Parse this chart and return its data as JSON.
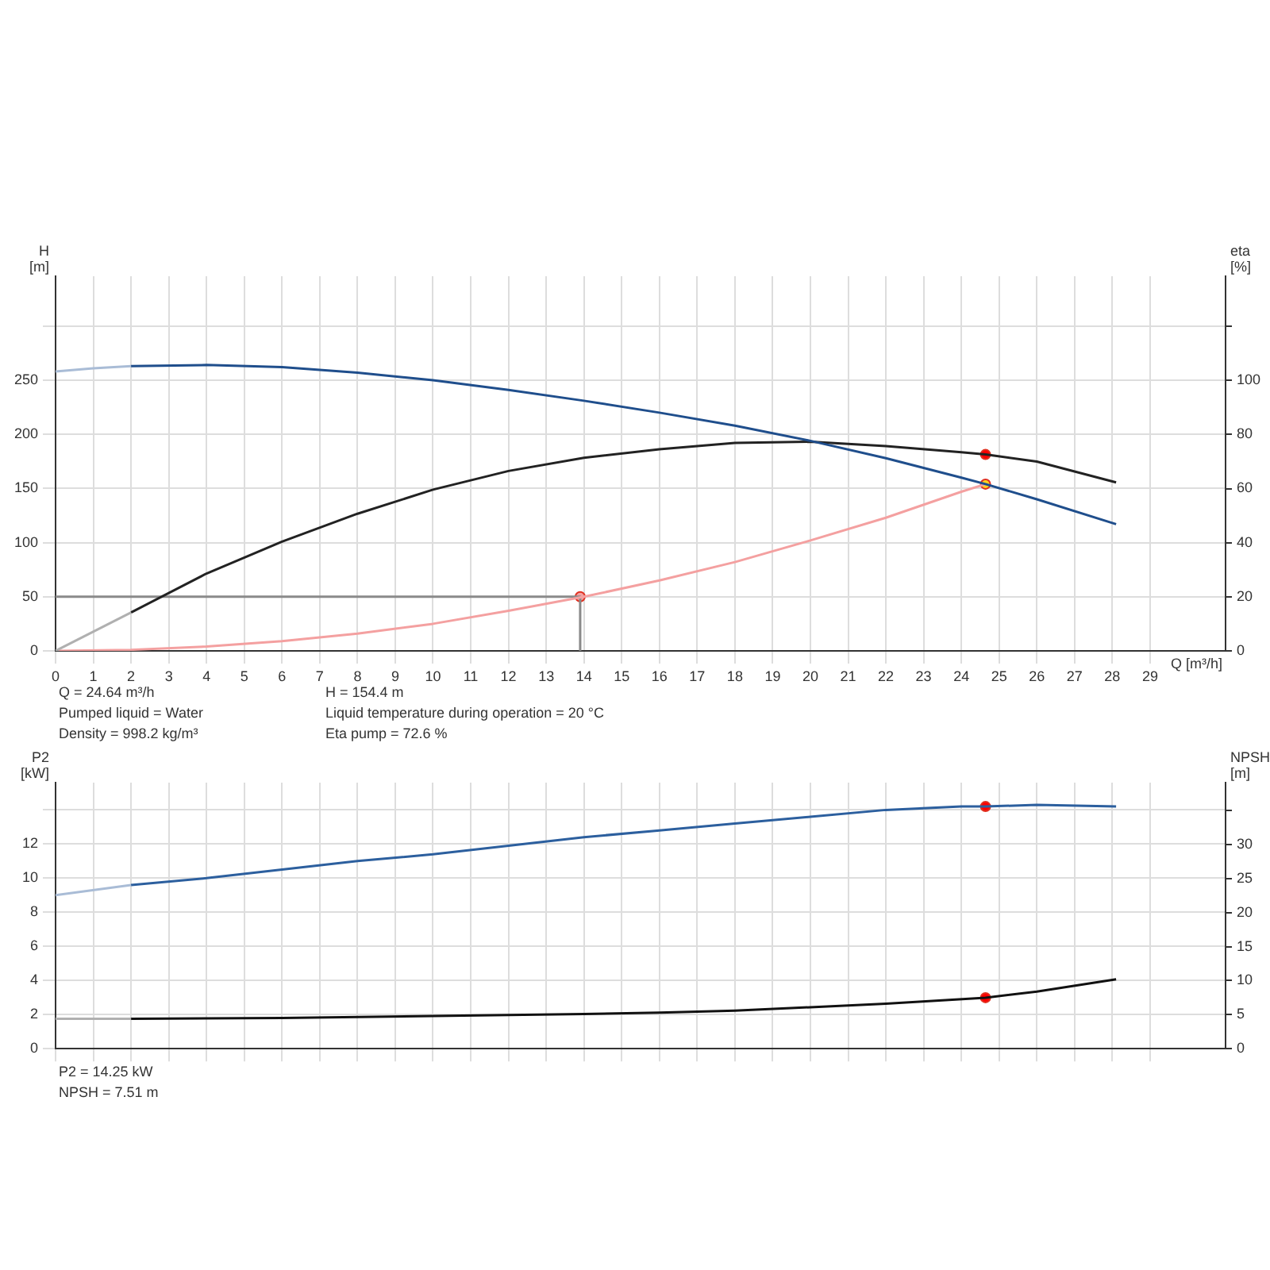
{
  "chart_data": [
    {
      "type": "line",
      "xlabel": "Q [m³/h]",
      "ylabel": "H [m]",
      "y2label": "eta [%]",
      "xlim": [
        0,
        31
      ],
      "xticks": [
        0,
        1,
        2,
        3,
        4,
        5,
        6,
        7,
        8,
        9,
        10,
        11,
        12,
        13,
        14,
        15,
        16,
        17,
        18,
        19,
        20,
        21,
        22,
        23,
        24,
        25,
        26,
        27,
        28,
        29
      ],
      "ylim": [
        0,
        346
      ],
      "yticks": [
        0,
        50,
        100,
        150,
        200,
        250,
        {
          "value": 300,
          "label": null
        }
      ],
      "y2lim": [
        0,
        138.5
      ],
      "y2ticks": [
        0,
        20,
        40,
        60,
        80,
        100,
        {
          "value": 120,
          "label": null
        }
      ],
      "grid": true,
      "legend": false,
      "series": [
        {
          "color": "#a9bcd6",
          "line_style": "solid",
          "marker": "none",
          "x": [
            0,
            1,
            2
          ],
          "values": [
            258,
            261,
            263
          ]
        },
        {
          "color": "#1f4e8c",
          "line_style": "solid",
          "marker": "none",
          "x": [
            2,
            4,
            6,
            8,
            10,
            12,
            14,
            16,
            18,
            20,
            22,
            24,
            24.64,
            26,
            28.1
          ],
          "values": [
            263,
            264,
            262,
            257,
            250,
            241,
            231,
            220,
            208,
            194,
            178,
            160,
            154,
            140,
            117
          ]
        },
        {
          "axis": "y2",
          "color": "#b0b0b0",
          "line_style": "solid",
          "marker": "none",
          "x": [
            0,
            2
          ],
          "values": [
            0,
            14.2
          ]
        },
        {
          "axis": "y2",
          "color": "#222222",
          "line_style": "solid",
          "marker": "none",
          "x": [
            2,
            4,
            6,
            8,
            10,
            12,
            14,
            16,
            18,
            20,
            22,
            24,
            24.64,
            26,
            28.1
          ],
          "values": [
            14.2,
            28.6,
            40.4,
            50.7,
            59.6,
            66.5,
            71.4,
            74.5,
            76.9,
            77.3,
            75.7,
            73.4,
            72.6,
            70.0,
            62.3
          ]
        },
        {
          "color": "#f4a0a0",
          "line_style": "solid",
          "marker": "none",
          "x": [
            0,
            2,
            4,
            6,
            8,
            10,
            12,
            14,
            16,
            18,
            20,
            22,
            24,
            24.64
          ],
          "values": [
            0,
            1,
            4,
            9,
            16,
            25,
            37,
            50,
            65,
            82,
            102,
            123,
            147,
            154
          ]
        },
        {
          "color": "#8a8a8a",
          "line_style": "solid",
          "marker": "none",
          "x": [
            0,
            13.9,
            13.9
          ],
          "values": [
            50,
            50,
            0
          ]
        },
        {
          "type": "scatter",
          "color": "#f4a0a0",
          "marker": "circle",
          "x": [
            13.9
          ],
          "values": [
            50
          ]
        },
        {
          "type": "scatter",
          "axis": "y2",
          "color": "#ff0000",
          "marker": "circle",
          "x": [
            24.64
          ],
          "values": [
            72.6
          ]
        },
        {
          "type": "scatter",
          "color": "#ffd21f",
          "marker": "circle",
          "x": [
            24.64
          ],
          "values": [
            154
          ]
        }
      ],
      "annotations": [
        "Q = 24.64 m³/h",
        "Pumped liquid = Water",
        "Density = 998.2 kg/m³",
        "H = 154.4 m",
        "Liquid temperature during operation = 20 °C",
        "Eta pump = 72.6 %"
      ]
    },
    {
      "type": "line",
      "ylabel": "P2 [kW]",
      "y2label": "NPSH [m]",
      "tick_labels": "y",
      "xlim": [
        0,
        31
      ],
      "xticks": [
        0,
        1,
        2,
        3,
        4,
        5,
        6,
        7,
        8,
        9,
        10,
        11,
        12,
        13,
        14,
        15,
        16,
        17,
        18,
        19,
        20,
        21,
        22,
        23,
        24,
        25,
        26,
        27,
        28,
        29
      ],
      "ylim": [
        0,
        15.6
      ],
      "yticks": [
        0,
        2,
        4,
        6,
        8,
        10,
        12,
        {
          "value": 14,
          "label": null
        }
      ],
      "y2lim": [
        0,
        39.1
      ],
      "y2ticks": [
        0,
        5,
        10,
        15,
        20,
        25,
        30,
        {
          "value": 35,
          "label": null
        }
      ],
      "grid": true,
      "legend": false,
      "series": [
        {
          "color": "#a9bcd6",
          "line_style": "solid",
          "marker": "none",
          "x": [
            0,
            2
          ],
          "values": [
            9.0,
            9.6
          ]
        },
        {
          "color": "#2c5f9e",
          "line_style": "solid",
          "marker": "none",
          "x": [
            2,
            4,
            6,
            8,
            10,
            12,
            14,
            16,
            18,
            20,
            22,
            24,
            24.64,
            26,
            28.1
          ],
          "values": [
            9.6,
            10.0,
            10.5,
            11.0,
            11.4,
            11.9,
            12.4,
            12.8,
            13.2,
            13.6,
            14.0,
            14.2,
            14.2,
            14.3,
            14.2
          ]
        },
        {
          "axis": "y2",
          "color": "#b0b0b0",
          "line_style": "solid",
          "marker": "none",
          "x": [
            0,
            2
          ],
          "values": [
            4.4,
            4.4
          ]
        },
        {
          "axis": "y2",
          "color": "#111111",
          "line_style": "solid",
          "marker": "none",
          "x": [
            2,
            6,
            10,
            14,
            16,
            18,
            20,
            22,
            24.64,
            26,
            28.1
          ],
          "values": [
            4.4,
            4.5,
            4.8,
            5.1,
            5.3,
            5.6,
            6.1,
            6.6,
            7.5,
            8.4,
            10.2
          ]
        },
        {
          "type": "scatter",
          "color": "#ff0000",
          "marker": "circle",
          "x": [
            24.64
          ],
          "values": [
            14.2
          ]
        },
        {
          "type": "scatter",
          "axis": "y2",
          "color": "#ff0000",
          "marker": "circle",
          "x": [
            24.64
          ],
          "values": [
            7.5
          ]
        }
      ],
      "annotations": [
        "P2 = 14.25 kW",
        "NPSH = 7.51 m"
      ]
    }
  ]
}
